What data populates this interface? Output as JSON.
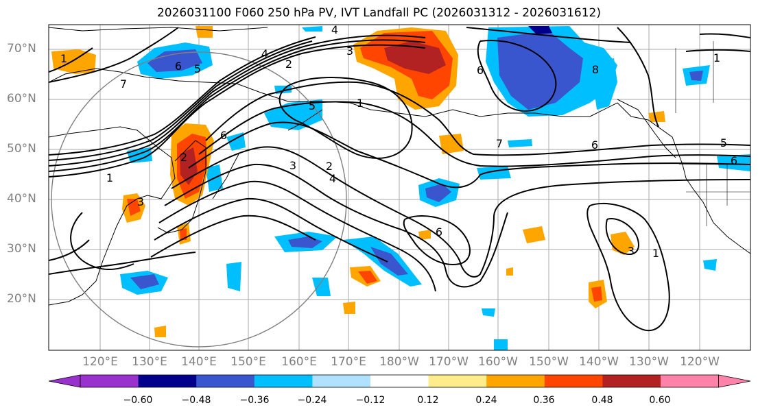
{
  "title": "2026031100 F060 250 hPa PV, IVT Landfall PC (2026031312 - 2026031612)",
  "lat_labels": [
    "70°N",
    "60°N",
    "50°N",
    "40°N",
    "30°N",
    "20°N"
  ],
  "lon_labels": [
    "120°E",
    "130°E",
    "140°E",
    "150°E",
    "160°E",
    "170°E",
    "180°W",
    "170°W",
    "160°W",
    "150°W",
    "140°W",
    "130°W",
    "120°W"
  ],
  "contour_labels": [
    "1",
    "7",
    "6",
    "5",
    "4",
    "2",
    "3",
    "3",
    "1",
    "6",
    "2",
    "1",
    "5",
    "6",
    "2",
    "3",
    "4",
    "7",
    "6",
    "5",
    "1",
    "6",
    "8",
    "1",
    "3",
    "6",
    "4"
  ],
  "colorbar": {
    "labels": [
      "−0.60",
      "−0.48",
      "−0.36",
      "−0.24",
      "−0.12",
      "0.12",
      "0.24",
      "0.36",
      "0.48",
      "0.60"
    ],
    "colors": [
      "#9932cc",
      "#00008b",
      "#3a56cf",
      "#00bfff",
      "#b0e2ff",
      "#ffffff",
      "#ffec8b",
      "#ffa500",
      "#ff4500",
      "#b22222",
      "#ff82ab"
    ]
  }
}
